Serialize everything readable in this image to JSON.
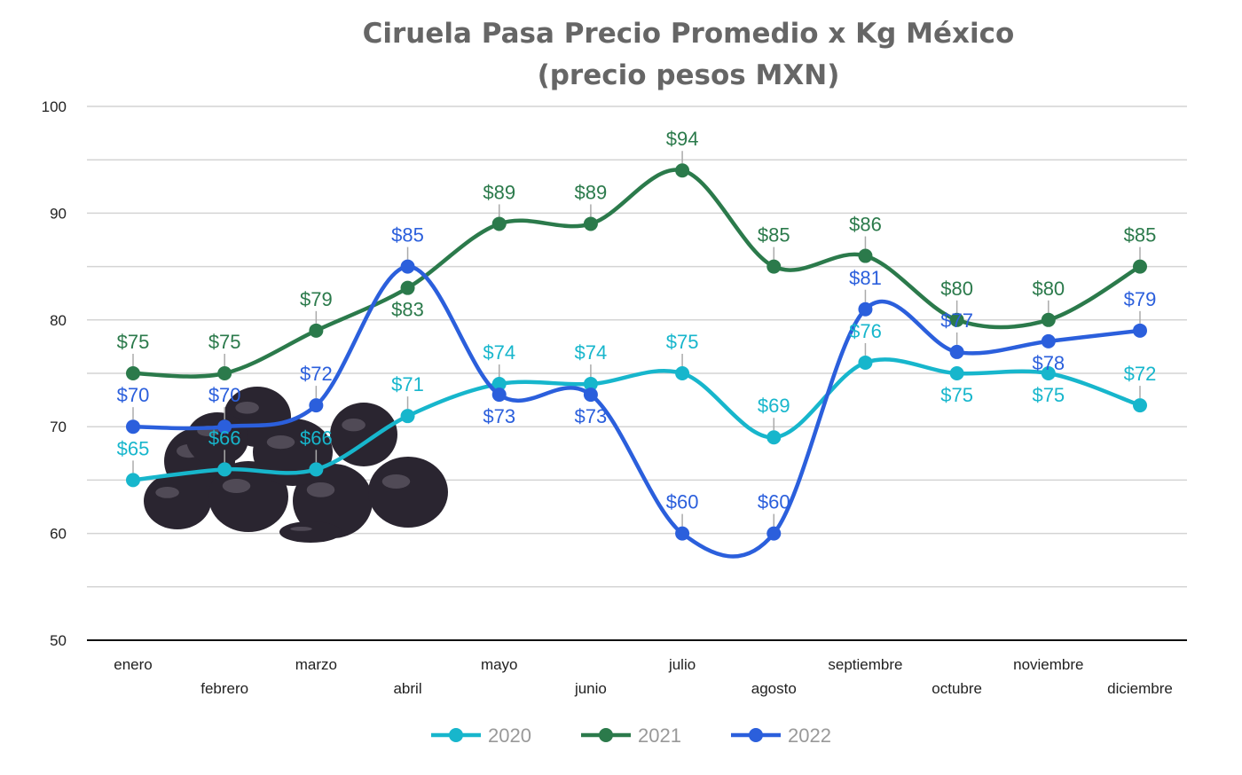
{
  "chart_data": {
    "type": "line",
    "title": [
      "Ciruela Pasa Precio Promedio x Kg México",
      "(precio pesos MXN)"
    ],
    "xlabel": "",
    "ylabel": "",
    "ylim": [
      50,
      100
    ],
    "yticks": [
      50,
      60,
      70,
      80,
      90,
      100
    ],
    "grid": true,
    "legend_placement": "bottom",
    "smooth": true,
    "data_label_prefix": "$",
    "categories": [
      "enero",
      "febrero",
      "marzo",
      "abril",
      "mayo",
      "junio",
      "julio",
      "agosto",
      "septiembre",
      "octubre",
      "noviembre",
      "diciembre"
    ],
    "series": [
      {
        "name": "2020",
        "color": "#17b6cc",
        "values": [
          65,
          66,
          66,
          71,
          74,
          74,
          75,
          69,
          76,
          75,
          75,
          72
        ]
      },
      {
        "name": "2021",
        "color": "#2b7a4b",
        "values": [
          75,
          75,
          79,
          83,
          89,
          89,
          94,
          85,
          86,
          80,
          80,
          85
        ]
      },
      {
        "name": "2022",
        "color": "#2b5fdc",
        "values": [
          70,
          70,
          72,
          85,
          73,
          73,
          60,
          60,
          81,
          77,
          78,
          79
        ]
      }
    ]
  }
}
